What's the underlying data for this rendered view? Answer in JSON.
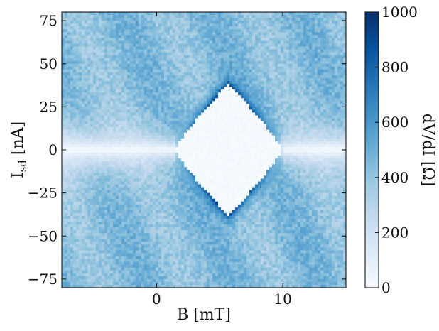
{
  "chart_data": {
    "type": "heatmap",
    "title": "",
    "xlabel": "B [mT]",
    "ylabel_main": "I",
    "ylabel_sub": "sd",
    "ylabel_unit": " [nA]",
    "xlim": [
      -7.5,
      15
    ],
    "ylim": [
      -80,
      80
    ],
    "x_ticks": [
      0,
      10
    ],
    "x_tick_labels": [
      "0",
      "10"
    ],
    "y_ticks": [
      75,
      50,
      25,
      0,
      -25,
      -50,
      -75
    ],
    "y_tick_labels": [
      "75",
      "50",
      "25",
      "0",
      "−25",
      "−50",
      "−75"
    ],
    "colorbar": {
      "label": "dV/dI [Ω]",
      "range": [
        0,
        1000
      ],
      "ticks": [
        1000,
        800,
        600,
        400,
        200,
        0
      ],
      "tick_labels": [
        "1000",
        "800",
        "600",
        "400",
        "200",
        "0"
      ],
      "colormap": "Blues",
      "color_low": "#f7fbff",
      "color_high": "#08306b"
    },
    "features": {
      "background_value": 430,
      "superconducting_region": {
        "value": 0,
        "center_B_mT": 5.7,
        "B_min_mT": 1.5,
        "B_max_mT": 10,
        "Ic_max_nA": 38
      },
      "peak_value": 1000
    }
  }
}
